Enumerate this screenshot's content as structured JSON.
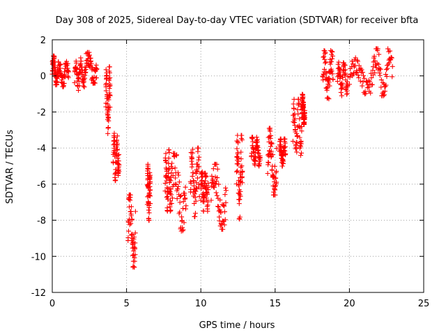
{
  "chart_data": {
    "type": "scatter",
    "title": "Day 308 of 2025, Sidereal Day-to-day VTEC variation (SDTVAR) for receiver bfta",
    "xlabel": "GPS time / hours",
    "ylabel": "SDTVAR / TECUs",
    "xlim": [
      0,
      25
    ],
    "ylim": [
      -12,
      2
    ],
    "xticks": [
      0,
      5,
      10,
      15,
      20,
      25
    ],
    "yticks": [
      2,
      0,
      -2,
      -4,
      -6,
      -8,
      -10,
      -12
    ],
    "grid": true,
    "marker": "+",
    "color": "#ff0000",
    "clusters": [
      {
        "x": [
          0.0,
          0.35
        ],
        "y": [
          -0.5,
          1.1
        ]
      },
      {
        "x": [
          0.35,
          1.1
        ],
        "y": [
          -0.6,
          0.8
        ]
      },
      {
        "x": [
          1.5,
          2.2
        ],
        "y": [
          -0.8,
          1.0
        ]
      },
      {
        "x": [
          2.2,
          3.0
        ],
        "y": [
          -0.4,
          1.3
        ]
      },
      {
        "x": [
          3.6,
          3.9
        ],
        "y": [
          -3.2,
          0.5
        ]
      },
      {
        "x": [
          4.1,
          4.5
        ],
        "y": [
          -5.8,
          -3.0
        ]
      },
      {
        "x": [
          5.1,
          5.6
        ],
        "y": [
          -10.6,
          -6.6
        ]
      },
      {
        "x": [
          6.4,
          6.6
        ],
        "y": [
          -8.0,
          -4.9
        ]
      },
      {
        "x": [
          7.6,
          8.0
        ],
        "y": [
          -7.5,
          -4.1
        ]
      },
      {
        "x": [
          8.0,
          9.0
        ],
        "y": [
          -8.6,
          -4.3
        ]
      },
      {
        "x": [
          9.3,
          9.9
        ],
        "y": [
          -7.8,
          -4.0
        ]
      },
      {
        "x": [
          10.0,
          10.5
        ],
        "y": [
          -7.5,
          -5.2
        ]
      },
      {
        "x": [
          10.7,
          11.7
        ],
        "y": [
          -8.5,
          -4.9
        ]
      },
      {
        "x": [
          12.4,
          12.8
        ],
        "y": [
          -8.0,
          -3.3
        ]
      },
      {
        "x": [
          13.4,
          14.0
        ],
        "y": [
          -5.0,
          -3.4
        ]
      },
      {
        "x": [
          14.5,
          15.1
        ],
        "y": [
          -6.6,
          -2.9
        ]
      },
      {
        "x": [
          15.3,
          15.7
        ],
        "y": [
          -5.0,
          -3.5
        ]
      },
      {
        "x": [
          16.2,
          16.8
        ],
        "y": [
          -4.4,
          -1.3
        ]
      },
      {
        "x": [
          16.8,
          17.0
        ],
        "y": [
          -2.7,
          -1.0
        ]
      },
      {
        "x": [
          18.2,
          18.9
        ],
        "y": [
          -1.4,
          1.4
        ]
      },
      {
        "x": [
          19.2,
          19.9
        ],
        "y": [
          -1.1,
          0.8
        ]
      },
      {
        "x": [
          20.0,
          21.6
        ],
        "y": [
          -1.0,
          1.0
        ]
      },
      {
        "x": [
          21.6,
          22.9
        ],
        "y": [
          -1.1,
          1.5
        ]
      }
    ]
  }
}
